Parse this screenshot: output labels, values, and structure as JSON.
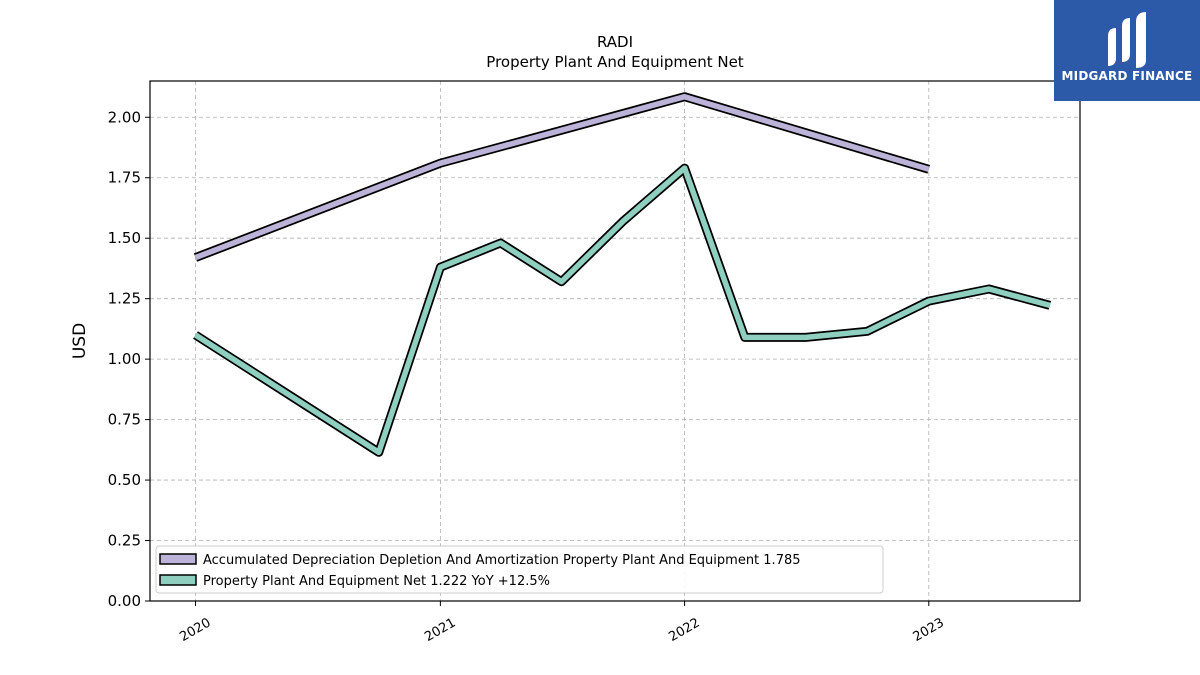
{
  "logo": {
    "text": "MIDGARD FINANCE",
    "bg_color": "#2d5aa8"
  },
  "chart_data": {
    "type": "line",
    "title": "RADI",
    "subtitle": "Property Plant And Equipment Net",
    "xlabel": "",
    "ylabel": "USD",
    "x_ticks": [
      "2020",
      "2021",
      "2022",
      "2023"
    ],
    "y_ticks": [
      "0.00",
      "0.25",
      "0.50",
      "0.75",
      "1.00",
      "1.25",
      "1.50",
      "1.75",
      "2.00"
    ],
    "xlim": [
      "2019-10-25",
      "2023-08-15"
    ],
    "ylim": [
      0,
      2.15
    ],
    "grid": true,
    "legend_position": "lower-left",
    "series": [
      {
        "name": "Accumulated Depreciation Depletion And Amortization Property Plant And Equipment  1.785",
        "color": "#bcb4d8",
        "points": [
          {
            "x": "2020-01-01",
            "y": 1.42
          },
          {
            "x": "2021-01-01",
            "y": 1.81
          },
          {
            "x": "2022-01-01",
            "y": 2.085
          },
          {
            "x": "2023-01-01",
            "y": 1.785
          }
        ]
      },
      {
        "name": "Property Plant And Equipment Net  1.222 YoY +12.5%",
        "color": "#8ecfc0",
        "points": [
          {
            "x": "2020-01-01",
            "y": 1.1
          },
          {
            "x": "2020-10-01",
            "y": 0.615
          },
          {
            "x": "2021-01-01",
            "y": 1.38
          },
          {
            "x": "2021-04-01",
            "y": 1.48
          },
          {
            "x": "2021-07-01",
            "y": 1.32
          },
          {
            "x": "2021-10-01",
            "y": 1.57
          },
          {
            "x": "2022-01-01",
            "y": 1.79
          },
          {
            "x": "2022-04-01",
            "y": 1.09
          },
          {
            "x": "2022-07-01",
            "y": 1.09
          },
          {
            "x": "2022-10-01",
            "y": 1.115
          },
          {
            "x": "2023-01-01",
            "y": 1.24
          },
          {
            "x": "2023-04-01",
            "y": 1.29
          },
          {
            "x": "2023-07-01",
            "y": 1.222
          }
        ]
      }
    ]
  }
}
